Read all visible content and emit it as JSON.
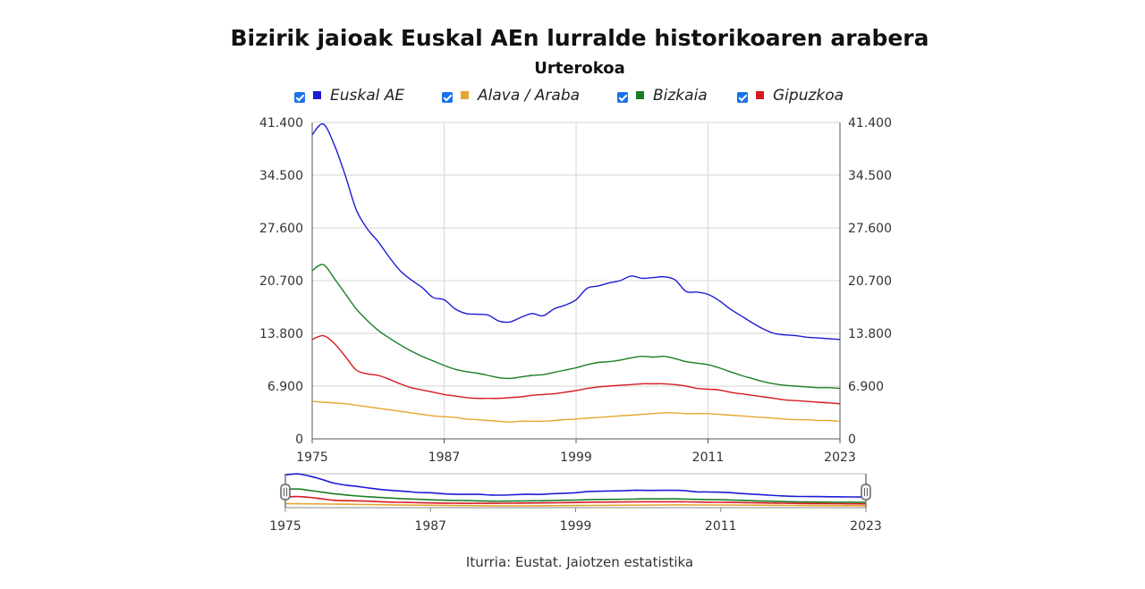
{
  "title": "Bizirik jaioak Euskal AEn lurralde historikoaren arabera",
  "subtitle": "Urterokoa",
  "source": "Iturria: Eustat. Jaiotzen estatistika",
  "legend": [
    {
      "label": "Euskal AE",
      "color": "#1c1cd6",
      "checked": true
    },
    {
      "label": "Alava / Araba",
      "color": "#e5a52f",
      "checked": true
    },
    {
      "label": "Bizkaia",
      "color": "#1a7f23",
      "checked": true
    },
    {
      "label": "Gipuzkoa",
      "color": "#d51a21",
      "checked": true
    }
  ],
  "chart_data": {
    "type": "line",
    "title": "Bizirik jaioak Euskal AEn lurralde historikoaren arabera",
    "subtitle": "Urterokoa",
    "x": [
      1975,
      1976,
      1977,
      1978,
      1979,
      1980,
      1981,
      1982,
      1983,
      1984,
      1985,
      1986,
      1987,
      1988,
      1989,
      1990,
      1991,
      1992,
      1993,
      1994,
      1995,
      1996,
      1997,
      1998,
      1999,
      2000,
      2001,
      2002,
      2003,
      2004,
      2005,
      2006,
      2007,
      2008,
      2009,
      2010,
      2011,
      2012,
      2013,
      2014,
      2015,
      2016,
      2017,
      2018,
      2019,
      2020,
      2021,
      2022,
      2023
    ],
    "x_ticks": [
      "1975",
      "1987",
      "1999",
      "2011",
      "2023"
    ],
    "y_ticks": [
      "0",
      "6.900",
      "13.800",
      "20.700",
      "27.600",
      "34.500",
      "41.400"
    ],
    "ylim": [
      0,
      41400
    ],
    "grid": true,
    "series": [
      {
        "name": "Euskal AE",
        "color": "#1c1cd6",
        "values": [
          39800,
          41200,
          38500,
          34500,
          30000,
          27500,
          25800,
          23800,
          22000,
          20800,
          19800,
          18500,
          18200,
          17000,
          16400,
          16300,
          16200,
          15400,
          15300,
          15900,
          16400,
          16100,
          17000,
          17500,
          18200,
          19700,
          20000,
          20400,
          20700,
          21300,
          21000,
          21100,
          21200,
          20800,
          19300,
          19200,
          18900,
          18100,
          17000,
          16100,
          15200,
          14400,
          13800,
          13600,
          13500,
          13300,
          13200,
          13100,
          13000
        ]
      },
      {
        "name": "Alava / Araba",
        "color": "#e5a52f",
        "values": [
          4900,
          4800,
          4700,
          4600,
          4400,
          4200,
          4000,
          3800,
          3600,
          3400,
          3200,
          3000,
          2900,
          2800,
          2600,
          2500,
          2400,
          2300,
          2200,
          2300,
          2300,
          2300,
          2400,
          2500,
          2600,
          2700,
          2800,
          2900,
          3000,
          3100,
          3200,
          3300,
          3400,
          3400,
          3300,
          3300,
          3300,
          3200,
          3100,
          3000,
          2900,
          2800,
          2700,
          2600,
          2500,
          2500,
          2400,
          2400,
          2300
        ]
      },
      {
        "name": "Bizkaia",
        "color": "#1a7f23",
        "values": [
          22000,
          22800,
          21000,
          19000,
          17000,
          15500,
          14200,
          13200,
          12300,
          11500,
          10800,
          10200,
          9600,
          9100,
          8800,
          8600,
          8300,
          8000,
          7900,
          8100,
          8300,
          8400,
          8700,
          9000,
          9300,
          9700,
          10000,
          10100,
          10300,
          10600,
          10800,
          10700,
          10800,
          10500,
          10100,
          9900,
          9700,
          9300,
          8800,
          8300,
          7900,
          7500,
          7200,
          7000,
          6900,
          6800,
          6700,
          6700,
          6600
        ]
      },
      {
        "name": "Gipuzkoa",
        "color": "#d51a21",
        "values": [
          13000,
          13500,
          12500,
          10800,
          9000,
          8500,
          8300,
          7800,
          7200,
          6700,
          6400,
          6100,
          5800,
          5600,
          5400,
          5300,
          5300,
          5300,
          5400,
          5500,
          5700,
          5800,
          5900,
          6100,
          6300,
          6600,
          6800,
          6900,
          7000,
          7100,
          7200,
          7200,
          7200,
          7100,
          6900,
          6600,
          6500,
          6400,
          6100,
          5900,
          5700,
          5500,
          5300,
          5100,
          5000,
          4900,
          4800,
          4700,
          4600
        ]
      }
    ]
  }
}
